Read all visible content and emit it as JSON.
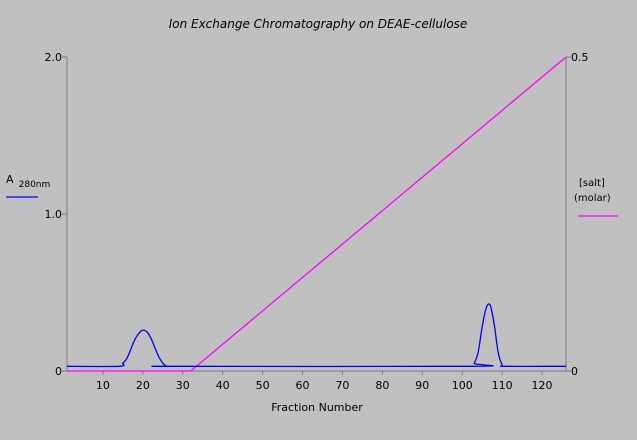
{
  "chart_data": {
    "type": "line",
    "title": "Ion Exchange Chromatography on DEAE-cellulose",
    "xlabel": "Fraction Number",
    "xlim": [
      1,
      126
    ],
    "xticks": [
      10,
      20,
      30,
      40,
      50,
      60,
      70,
      80,
      90,
      100,
      110,
      120
    ],
    "grid": false,
    "y_left": {
      "label_main": "A",
      "label_sub": "280nm",
      "ylim": [
        0,
        2.0
      ],
      "ticks": [
        {
          "value": 0,
          "label": "0"
        },
        {
          "value": 1.0,
          "label": "1.0"
        },
        {
          "value": 2.0,
          "label": "2.0"
        }
      ]
    },
    "y_right": {
      "label_line1": "[salt]",
      "label_line2": "(molar)",
      "ylim": [
        0,
        0.5
      ],
      "ticks": [
        {
          "value": 0,
          "label": "0"
        },
        {
          "value": 0.5,
          "label": "0.5"
        }
      ]
    },
    "series": [
      {
        "axis": "left",
        "color": "#0000ff",
        "x": [
          1,
          14,
          15,
          16,
          17,
          18,
          19,
          20,
          21,
          22,
          23,
          24,
          25,
          26,
          27,
          28,
          102,
          103,
          104,
          105,
          106,
          107,
          108,
          109,
          110,
          111,
          126
        ],
        "y": [
          0.03,
          0.03,
          0.05,
          0.08,
          0.14,
          0.2,
          0.24,
          0.26,
          0.25,
          0.21,
          0.15,
          0.09,
          0.05,
          0.03,
          0.03,
          0.03,
          0.03,
          0.05,
          0.12,
          0.28,
          0.4,
          0.42,
          0.3,
          0.12,
          0.04,
          0.03,
          0.03
        ]
      },
      {
        "axis": "right",
        "color": "#ff00ff",
        "x": [
          1,
          32,
          126
        ],
        "y": [
          0.0,
          0.0,
          0.5
        ]
      }
    ]
  }
}
